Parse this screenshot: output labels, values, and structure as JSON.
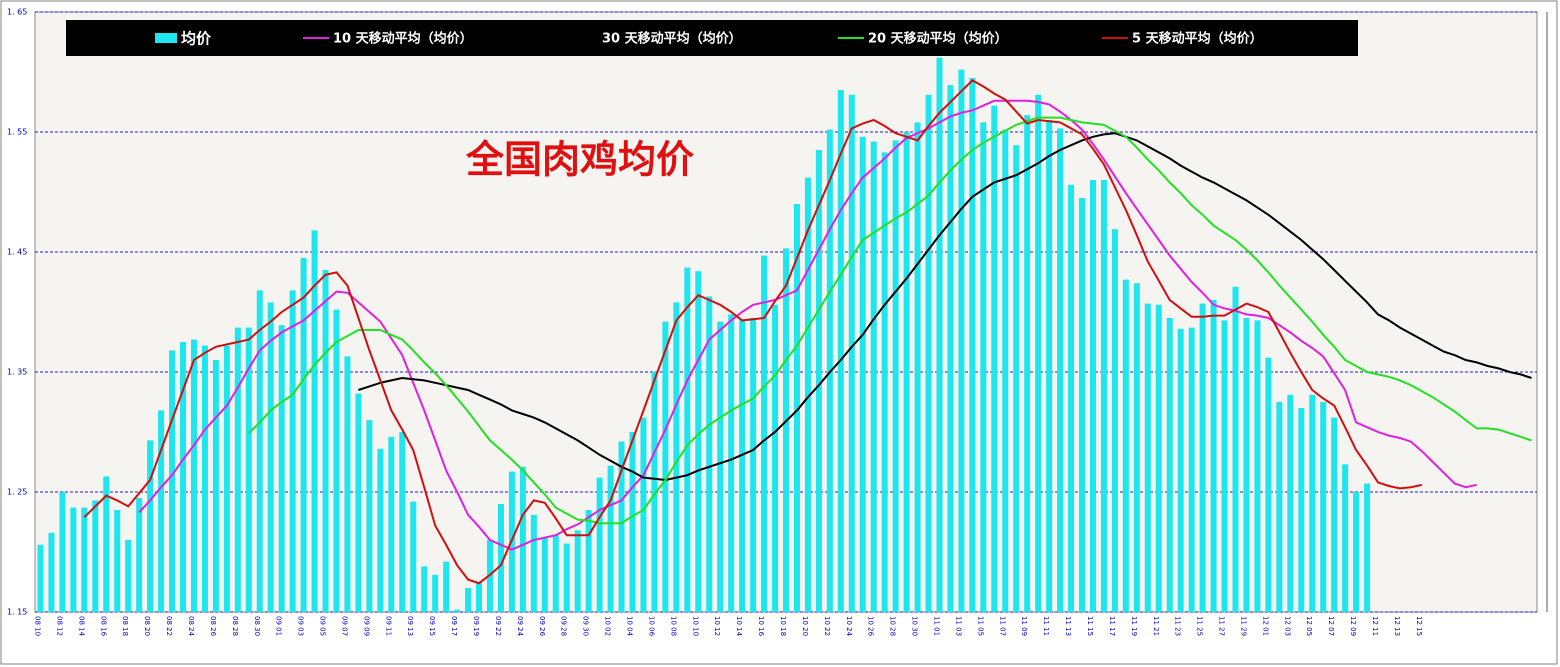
{
  "chart_data": {
    "type": "bar",
    "title": "全国肉鸡均价",
    "categories": [
      "08 10",
      null,
      "08 12",
      null,
      "08 14",
      null,
      "08 16",
      null,
      "08 18",
      null,
      "08 20",
      null,
      "08 22",
      null,
      "08 24",
      null,
      "08 26",
      null,
      "08 28",
      null,
      "08 30",
      null,
      "09 01",
      null,
      "09 03",
      null,
      "09 05",
      null,
      "09 07",
      null,
      "09 09",
      null,
      "09 11",
      null,
      "09 13",
      null,
      "09 15",
      null,
      "09 17",
      null,
      "09 19",
      null,
      "09 22",
      null,
      "09 24",
      null,
      "09 26",
      null,
      "09 28",
      null,
      "09 30",
      null,
      "10 02",
      null,
      "10 04",
      null,
      "10 06",
      null,
      "10 08",
      null,
      "10 10",
      null,
      "10 12",
      null,
      "10 14",
      null,
      "10 16",
      null,
      "10 18",
      null,
      "10 20",
      null,
      "10 22",
      null,
      "10 24",
      null,
      "10 26",
      null,
      "10 28",
      null,
      "10 30",
      null,
      "11 01",
      null,
      "11 03",
      null,
      "11 05",
      null,
      "11 07",
      null,
      "11 09",
      null,
      "11 11",
      null,
      "11 13",
      null,
      "11 15",
      null,
      "11 17",
      null,
      "11 19",
      null,
      "11 21",
      null,
      "11 23",
      null,
      "11 25",
      null,
      "11 27",
      null,
      "11 29",
      null,
      "12 01",
      null,
      "12 03",
      null,
      "12 05",
      null,
      "12 07",
      null,
      "12 09",
      null,
      "12 11",
      null,
      "12 13",
      null,
      "12 15",
      null,
      null,
      null,
      null,
      null,
      null,
      null,
      null,
      null,
      null
    ],
    "series": [
      {
        "name": "均价",
        "type": "bar",
        "color": "#1ee6ee",
        "values": [
          1.206,
          1.216,
          1.25,
          1.237,
          1.237,
          1.243,
          1.263,
          1.235,
          1.21,
          1.245,
          1.293,
          1.318,
          1.368,
          1.375,
          1.377,
          1.372,
          1.36,
          1.372,
          1.387,
          1.387,
          1.418,
          1.408,
          1.389,
          1.418,
          1.445,
          1.468,
          1.435,
          1.402,
          1.363,
          1.332,
          1.31,
          1.286,
          1.296,
          1.3,
          1.242,
          1.188,
          1.181,
          1.192,
          1.152,
          1.17,
          1.175,
          1.21,
          1.24,
          1.267,
          1.271,
          1.231,
          1.212,
          1.214,
          1.207,
          1.218,
          1.235,
          1.262,
          1.272,
          1.292,
          1.3,
          1.312,
          1.35,
          1.392,
          1.408,
          1.437,
          1.434,
          1.413,
          1.392,
          1.398,
          1.393,
          1.395,
          1.447,
          1.406,
          1.453,
          1.49,
          1.512,
          1.535,
          1.552,
          1.585,
          1.581,
          1.546,
          1.542,
          1.533,
          1.543,
          1.55,
          1.558,
          1.581,
          1.612,
          1.589,
          1.602,
          1.595,
          1.558,
          1.572,
          1.552,
          1.539,
          1.564,
          1.581,
          1.56,
          1.553,
          1.506,
          1.495,
          1.51,
          1.51,
          1.469,
          1.427,
          1.424,
          1.407,
          1.406,
          1.395,
          1.386,
          1.387,
          1.407,
          1.41,
          1.393,
          1.421,
          1.395,
          1.393,
          1.362,
          1.325,
          1.331,
          1.32,
          1.331,
          1.325,
          1.312,
          1.273,
          1.25,
          1.257,
          null,
          null,
          null,
          null,
          null,
          null,
          null,
          null,
          null,
          null,
          null,
          null,
          null,
          null,
          null
        ]
      },
      {
        "name": "10 天移动平均（均价）",
        "type": "line",
        "color": "#e020e0",
        "values": [
          null,
          null,
          null,
          null,
          null,
          null,
          null,
          null,
          null,
          1.233,
          1.243,
          1.254,
          1.264,
          1.277,
          1.289,
          1.302,
          1.312,
          1.322,
          1.337,
          1.353,
          1.368,
          1.376,
          1.383,
          1.388,
          1.393,
          1.401,
          1.409,
          1.417,
          1.416,
          1.408,
          1.4,
          1.392,
          1.378,
          1.364,
          1.341,
          1.318,
          1.293,
          1.268,
          1.25,
          1.231,
          1.221,
          1.21,
          1.206,
          1.202,
          1.206,
          1.21,
          1.212,
          1.214,
          1.219,
          1.223,
          1.229,
          1.235,
          1.239,
          1.243,
          1.254,
          1.264,
          1.283,
          1.302,
          1.323,
          1.343,
          1.36,
          1.377,
          1.385,
          1.393,
          1.4,
          1.406,
          1.408,
          1.41,
          1.414,
          1.418,
          1.435,
          1.452,
          1.469,
          1.485,
          1.499,
          1.512,
          1.52,
          1.528,
          1.537,
          1.545,
          1.549,
          1.553,
          1.558,
          1.563,
          1.566,
          1.568,
          1.572,
          1.576,
          1.576,
          1.576,
          1.576,
          1.575,
          1.573,
          1.567,
          1.56,
          1.552,
          1.54,
          1.527,
          1.513,
          1.499,
          1.486,
          1.473,
          1.46,
          1.447,
          1.436,
          1.425,
          1.416,
          1.406,
          1.403,
          1.401,
          1.398,
          1.397,
          1.395,
          1.389,
          1.383,
          1.376,
          1.37,
          1.363,
          1.349,
          1.335,
          1.308,
          1.304,
          1.3,
          1.297,
          1.295,
          1.292,
          1.284,
          1.275,
          1.266,
          1.257,
          1.254,
          1.256,
          null,
          null,
          null,
          null,
          null
        ]
      },
      {
        "name": "30 天移动平均（均价）",
        "type": "line",
        "color": "#000000",
        "values": [
          null,
          null,
          null,
          null,
          null,
          null,
          null,
          null,
          null,
          null,
          null,
          null,
          null,
          null,
          null,
          null,
          null,
          null,
          null,
          null,
          null,
          null,
          null,
          null,
          null,
          null,
          null,
          null,
          null,
          1.335,
          1.338,
          1.341,
          1.343,
          1.345,
          1.344,
          1.343,
          1.341,
          1.339,
          1.337,
          1.335,
          1.331,
          1.327,
          1.323,
          1.318,
          1.315,
          1.312,
          1.308,
          1.303,
          1.298,
          1.293,
          1.287,
          1.281,
          1.276,
          1.271,
          1.267,
          1.262,
          1.261,
          1.26,
          1.262,
          1.264,
          1.268,
          1.271,
          1.274,
          1.277,
          1.281,
          1.285,
          1.293,
          1.3,
          1.309,
          1.318,
          1.329,
          1.339,
          1.35,
          1.36,
          1.371,
          1.381,
          1.394,
          1.406,
          1.417,
          1.428,
          1.44,
          1.452,
          1.464,
          1.475,
          1.486,
          1.496,
          1.502,
          1.508,
          1.511,
          1.514,
          1.519,
          1.524,
          1.53,
          1.535,
          1.539,
          1.543,
          1.546,
          1.548,
          1.549,
          1.546,
          1.543,
          1.538,
          1.533,
          1.528,
          1.522,
          1.517,
          1.512,
          1.508,
          1.503,
          1.498,
          1.493,
          1.487,
          1.481,
          1.474,
          1.467,
          1.46,
          1.452,
          1.444,
          1.435,
          1.426,
          1.417,
          1.408,
          1.398,
          1.393,
          1.387,
          1.382,
          1.377,
          1.372,
          1.367,
          1.364,
          1.36,
          1.358,
          1.355,
          1.353,
          1.35,
          1.348,
          1.345
        ]
      },
      {
        "name": "20 天移动平均（均价）",
        "type": "line",
        "color": "#22e022",
        "values": [
          null,
          null,
          null,
          null,
          null,
          null,
          null,
          null,
          null,
          null,
          null,
          null,
          null,
          null,
          null,
          null,
          null,
          null,
          null,
          1.299,
          1.308,
          1.318,
          1.325,
          1.331,
          1.344,
          1.356,
          1.366,
          1.375,
          1.38,
          1.385,
          1.385,
          1.385,
          1.381,
          1.377,
          1.368,
          1.358,
          1.349,
          1.339,
          1.328,
          1.317,
          1.305,
          1.293,
          1.285,
          1.277,
          1.268,
          1.258,
          1.248,
          1.237,
          1.232,
          1.227,
          1.226,
          1.224,
          1.224,
          1.224,
          1.23,
          1.235,
          1.248,
          1.26,
          1.275,
          1.289,
          1.298,
          1.306,
          1.312,
          1.318,
          1.323,
          1.328,
          1.338,
          1.347,
          1.36,
          1.372,
          1.387,
          1.402,
          1.417,
          1.431,
          1.446,
          1.46,
          1.466,
          1.472,
          1.478,
          1.483,
          1.49,
          1.497,
          1.508,
          1.518,
          1.527,
          1.535,
          1.541,
          1.546,
          1.551,
          1.556,
          1.559,
          1.562,
          1.562,
          1.562,
          1.56,
          1.558,
          1.557,
          1.556,
          1.551,
          1.546,
          1.537,
          1.527,
          1.518,
          1.508,
          1.499,
          1.489,
          1.481,
          1.472,
          1.466,
          1.46,
          1.452,
          1.443,
          1.433,
          1.422,
          1.412,
          1.402,
          1.392,
          1.381,
          1.371,
          1.36,
          1.355,
          1.35,
          1.348,
          1.346,
          1.343,
          1.339,
          1.334,
          1.329,
          1.323,
          1.317,
          1.31,
          1.303,
          1.303,
          1.302,
          1.299,
          1.296,
          1.293
        ]
      },
      {
        "name": "5 天移动平均（均价）",
        "type": "line",
        "color": "#d01010",
        "values": [
          null,
          null,
          null,
          null,
          1.229,
          1.238,
          1.247,
          1.243,
          1.238,
          1.249,
          1.26,
          1.285,
          1.31,
          1.335,
          1.36,
          1.366,
          1.371,
          1.373,
          1.375,
          1.377,
          1.385,
          1.392,
          1.4,
          1.406,
          1.412,
          1.422,
          1.431,
          1.433,
          1.422,
          1.395,
          1.368,
          1.343,
          1.318,
          1.302,
          1.285,
          1.254,
          1.222,
          1.206,
          1.189,
          1.177,
          1.174,
          1.181,
          1.189,
          1.21,
          1.231,
          1.243,
          1.241,
          1.228,
          1.214,
          1.214,
          1.214,
          1.229,
          1.243,
          1.268,
          1.293,
          1.318,
          1.343,
          1.368,
          1.393,
          1.404,
          1.414,
          1.41,
          1.406,
          1.4,
          1.393,
          1.394,
          1.395,
          1.409,
          1.422,
          1.445,
          1.468,
          1.489,
          1.51,
          1.532,
          1.553,
          1.557,
          1.56,
          1.555,
          1.549,
          1.546,
          1.543,
          1.555,
          1.566,
          1.575,
          1.584,
          1.593,
          1.588,
          1.582,
          1.577,
          1.567,
          1.557,
          1.56,
          1.559,
          1.558,
          1.553,
          1.548,
          1.536,
          1.523,
          1.504,
          1.485,
          1.464,
          1.442,
          1.426,
          1.41,
          1.403,
          1.396,
          1.396,
          1.397,
          1.397,
          1.402,
          1.407,
          1.404,
          1.4,
          1.383,
          1.366,
          1.35,
          1.335,
          1.328,
          1.322,
          1.304,
          1.285,
          1.272,
          1.258,
          1.255,
          1.253,
          1.254,
          1.256,
          null,
          null,
          null,
          null,
          null,
          null,
          null,
          null,
          null,
          null
        ]
      }
    ],
    "ylim": [
      1.15,
      1.65
    ],
    "yticks": [
      {
        "value": 1.15,
        "label": "1. 15"
      },
      {
        "value": 1.25,
        "label": "1. 25"
      },
      {
        "value": 1.35,
        "label": "1. 35"
      },
      {
        "value": 1.45,
        "label": "1. 45"
      },
      {
        "value": 1.55,
        "label": "1. 55"
      },
      {
        "value": 1.65,
        "label": "1. 65"
      }
    ],
    "grid": true,
    "legend": "top"
  }
}
